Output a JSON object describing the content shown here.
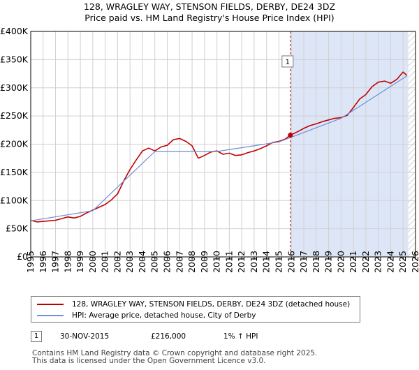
{
  "chart_data": {
    "type": "line",
    "title": "128, WRAGLEY WAY, STENSON FIELDS, DERBY, DE24 3DZ",
    "subtitle": "Price paid vs. HM Land Registry's House Price Index (HPI)",
    "xlabel": "",
    "ylabel": "",
    "xlim": [
      1995,
      2026
    ],
    "ylim": [
      0,
      400000
    ],
    "x_ticks": [
      "1995",
      "1996",
      "1997",
      "1998",
      "1999",
      "2000",
      "2001",
      "2002",
      "2003",
      "2004",
      "2005",
      "2006",
      "2007",
      "2008",
      "2009",
      "2010",
      "2011",
      "2012",
      "2013",
      "2014",
      "2015",
      "2016",
      "2017",
      "2018",
      "2019",
      "2020",
      "2021",
      "2022",
      "2023",
      "2024",
      "2025",
      "2026"
    ],
    "y_ticks": [
      {
        "value": 0,
        "label": "£0"
      },
      {
        "value": 50000,
        "label": "£50K"
      },
      {
        "value": 100000,
        "label": "£100K"
      },
      {
        "value": 150000,
        "label": "£150K"
      },
      {
        "value": 200000,
        "label": "£200K"
      },
      {
        "value": 250000,
        "label": "£250K"
      },
      {
        "value": 300000,
        "label": "£300K"
      },
      {
        "value": 350000,
        "label": "£350K"
      },
      {
        "value": 400000,
        "label": "£400K"
      }
    ],
    "grid": true,
    "shaded_region": {
      "from": 2015.92,
      "to": 2025.42,
      "color": "#dde6f7"
    },
    "hatched_region": {
      "from": 2025.42,
      "to": 2026
    },
    "series": [
      {
        "name": "128, WRAGLEY WAY, STENSON FIELDS, DERBY, DE24 3DZ (detached house)",
        "color": "#c00000",
        "x": [
          1995.0,
          1995.5,
          1996.0,
          1996.5,
          1997.0,
          1997.5,
          1998.0,
          1998.5,
          1999.0,
          1999.5,
          2000.0,
          2000.5,
          2001.0,
          2001.5,
          2002.0,
          2002.5,
          2003.0,
          2003.5,
          2004.0,
          2004.5,
          2005.0,
          2005.5,
          2006.0,
          2006.5,
          2007.0,
          2007.5,
          2008.0,
          2008.5,
          2009.0,
          2009.5,
          2010.0,
          2010.5,
          2011.0,
          2011.5,
          2012.0,
          2012.5,
          2013.0,
          2013.5,
          2014.0,
          2014.5,
          2015.0,
          2015.5,
          2015.92,
          2016.5,
          2017.0,
          2017.5,
          2018.0,
          2018.5,
          2019.0,
          2019.5,
          2020.0,
          2020.5,
          2021.0,
          2021.5,
          2022.0,
          2022.5,
          2023.0,
          2023.5,
          2024.0,
          2024.5,
          2025.0,
          2025.3
        ],
        "values": [
          65000,
          62000,
          63000,
          64000,
          65000,
          68000,
          71000,
          69000,
          72000,
          78000,
          83000,
          88000,
          93000,
          101000,
          112000,
          135000,
          155000,
          172000,
          188000,
          193000,
          188000,
          195000,
          198000,
          208000,
          210000,
          205000,
          197000,
          175000,
          180000,
          186000,
          188000,
          182000,
          184000,
          180000,
          181000,
          185000,
          188000,
          192000,
          197000,
          203000,
          205000,
          209000,
          216000,
          222000,
          228000,
          233000,
          236000,
          240000,
          243000,
          246000,
          247000,
          251000,
          265000,
          280000,
          288000,
          302000,
          310000,
          312000,
          308000,
          315000,
          328000,
          322000
        ]
      },
      {
        "name": "HPI: Average price, detached house, City of Derby",
        "color": "#6b8fd8",
        "x": [
          1995.0,
          2000.0,
          2005.0,
          2010.0,
          2015.0,
          2020.0,
          2025.3
        ],
        "values": [
          64000,
          82000,
          187000,
          187000,
          204000,
          246000,
          321000
        ]
      }
    ],
    "sales": [
      {
        "marker": "1",
        "x": 2015.92,
        "value": 216000,
        "date": "30-NOV-2015",
        "price": "£216,000",
        "hpi_change": "1% ↑ HPI"
      }
    ]
  },
  "legend": {
    "property_label": "128, WRAGLEY WAY, STENSON FIELDS, DERBY, DE24 3DZ (detached house)",
    "hpi_label": "HPI: Average price, detached house, City of Derby",
    "property_color": "#c00000",
    "hpi_color": "#6b8fd8"
  },
  "footer": {
    "line1": "Contains HM Land Registry data © Crown copyright and database right 2025.",
    "line2": "This data is licensed under the Open Government Licence v3.0."
  }
}
